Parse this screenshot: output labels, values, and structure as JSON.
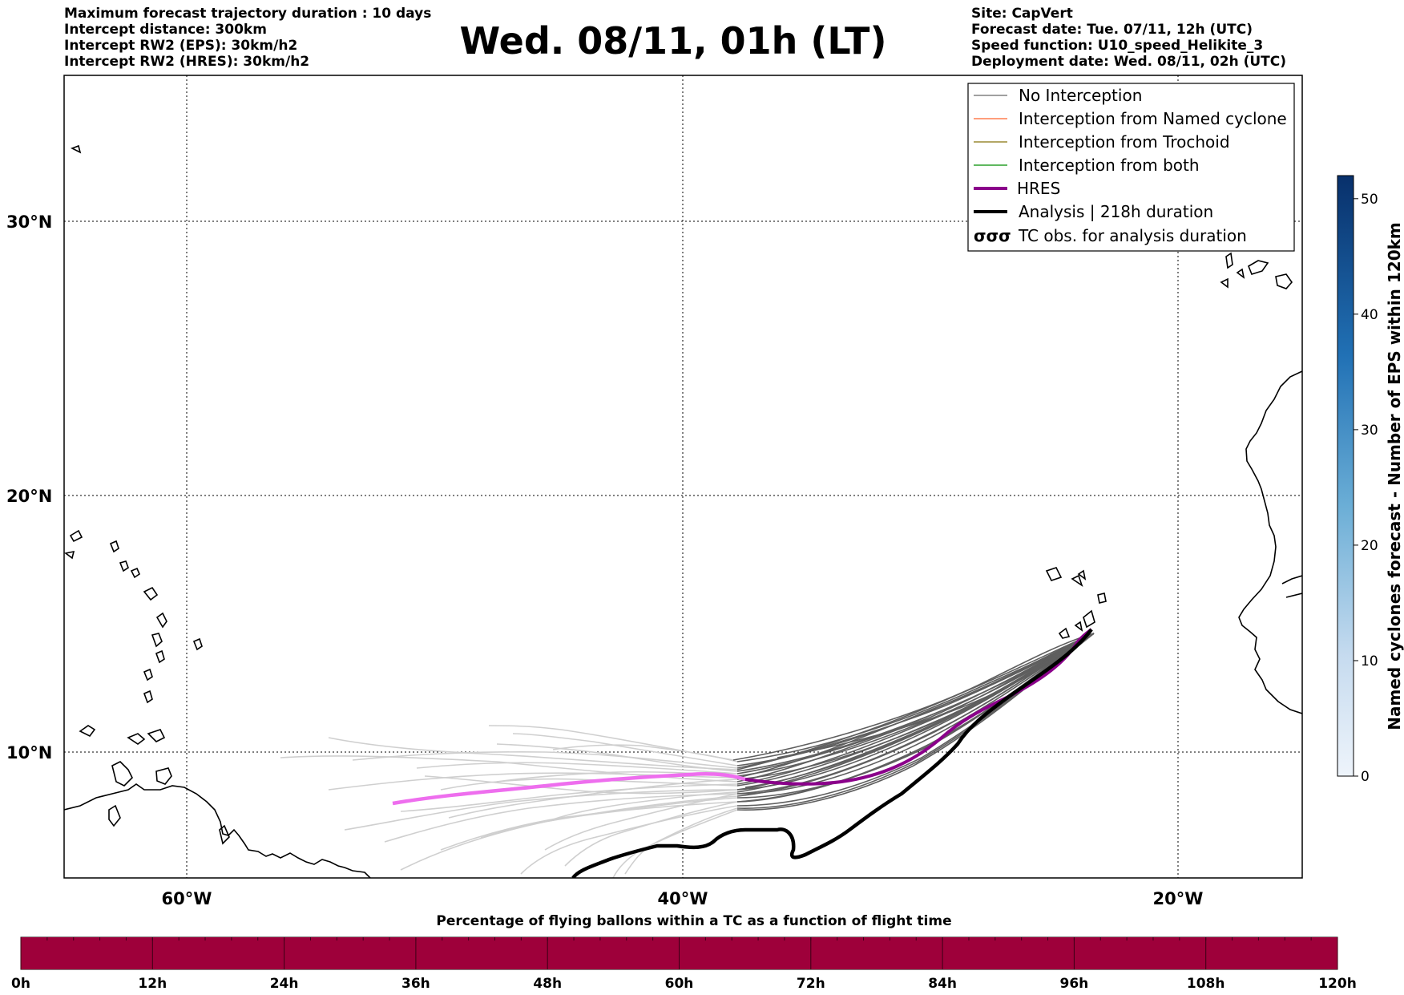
{
  "header": {
    "left": [
      "Maximum forecast trajectory duration : 10 days",
      "Intercept distance: 300km",
      "Intercept RW2 (EPS):  30km/h2",
      "Intercept RW2 (HRES): 30km/h2"
    ],
    "title": "Wed. 08/11, 01h (LT)",
    "right": [
      "Site: CapVert",
      "Forecast date: Tue. 07/11, 12h (UTC)",
      "Speed function: U10_speed_Helikite_3",
      "Deployment date: Wed. 08/11, 02h (UTC)"
    ]
  },
  "map": {
    "lat_labels": [
      "30°N",
      "20°N",
      "10°N"
    ],
    "lon_labels": [
      "60°W",
      "40°W",
      "20°W"
    ],
    "lon_range": [
      -65,
      -15
    ],
    "lat_range": [
      5.4,
      34.7
    ]
  },
  "legend": {
    "items": [
      {
        "label": "No Interception",
        "color": "#808080",
        "style": "thin"
      },
      {
        "label": "Interception from Named cyclone",
        "color": "#ff7f50",
        "style": "thin"
      },
      {
        "label": "Interception from Trochoid",
        "color": "#9a8a33",
        "style": "thin"
      },
      {
        "label": "Interception from both",
        "color": "#2ca02c",
        "style": "thin"
      },
      {
        "label": "HRES",
        "color": "#8b008b",
        "style": "thick"
      },
      {
        "label": "Analysis | 218h duration",
        "color": "#000000",
        "style": "thick"
      },
      {
        "label": "TC obs. for analysis duration",
        "color": "#000000",
        "style": "symbol",
        "symbol": "σσσ"
      }
    ]
  },
  "colorbar": {
    "label": "Named cyclones forecast - Number of EPS within 120km",
    "ticks": [
      "0",
      "10",
      "20",
      "30",
      "40",
      "50"
    ],
    "range": [
      0,
      52
    ],
    "color_low": "#e3eef9",
    "color_high": "#08306b"
  },
  "bottom_bar": {
    "title": "Percentage of flying ballons within a TC as a function of flight time",
    "ticks": [
      "0h",
      "12h",
      "24h",
      "36h",
      "48h",
      "60h",
      "72h",
      "84h",
      "96h",
      "108h",
      "120h"
    ],
    "fill_color": "#9e003a",
    "percent": 100
  }
}
